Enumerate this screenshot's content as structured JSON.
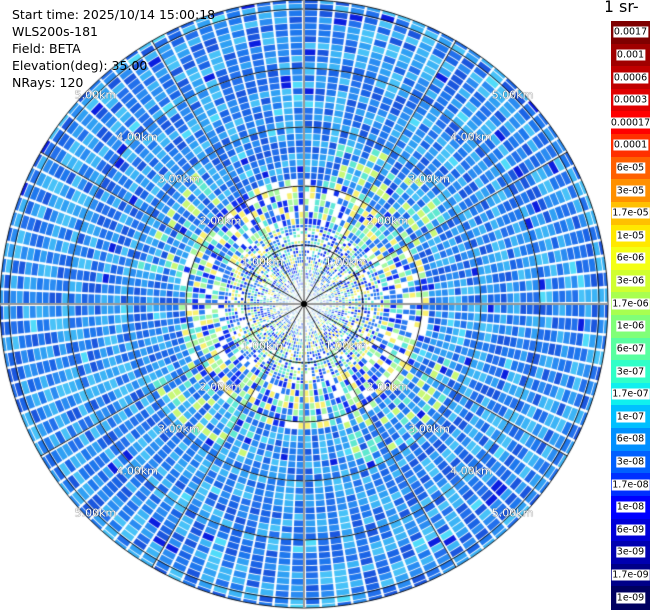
{
  "info": {
    "start_time": "Start time: 2025/10/14 15:00:18",
    "instrument": "WLS200s-181",
    "field": "Field: BETA",
    "elevation": "Elevation(deg): 35.00",
    "nrays": "NRays: 120"
  },
  "colorbar": {
    "title": "-1 sr-",
    "labels": [
      "0.0017",
      "0.001",
      "0.0006",
      "0.0003",
      "0.00017",
      "0.0001",
      "6e-05",
      "3e-05",
      "1.7e-05",
      "1e-05",
      "6e-06",
      "3e-06",
      "1.7e-06",
      "1e-06",
      "6e-07",
      "3e-07",
      "1.7e-07",
      "1e-07",
      "6e-08",
      "3e-08",
      "1.7e-08",
      "1e-08",
      "6e-09",
      "3e-09",
      "1.7e-09",
      "1e-09"
    ],
    "colors": [
      "#7f0000",
      "#a00000",
      "#c00000",
      "#e00000",
      "#ff0000",
      "#ff3000",
      "#ff6000",
      "#ff9000",
      "#ffc000",
      "#ffe800",
      "#f4ff14",
      "#d0ff30",
      "#a8ff50",
      "#80ff78",
      "#58ffa0",
      "#30ffc8",
      "#10f0ee",
      "#00c0ff",
      "#0090ff",
      "#0060ff",
      "#0030ff",
      "#0000ff",
      "#0000d8",
      "#0000b0",
      "#000088",
      "#000060"
    ]
  },
  "ring_labels": {
    "upper_left": [
      "1.00km",
      "2.00km",
      "3.00km",
      "4.00km",
      "5.00km"
    ],
    "upper_right": [
      "1.00km",
      "2.00km",
      "3.00km",
      "4.00km",
      "5.00km"
    ],
    "lower_left": [
      "1.00km",
      "2.00km",
      "3.00km",
      "4.00km",
      "5.00km"
    ],
    "lower_right": [
      "1.00km",
      "2.00km",
      "3.00km",
      "4.00km",
      "5.00km"
    ]
  }
}
